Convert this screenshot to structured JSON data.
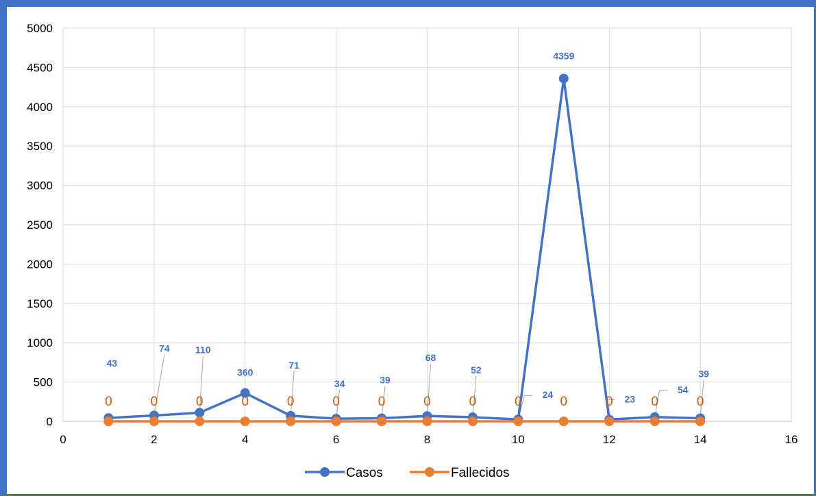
{
  "chart_data": {
    "type": "scatter",
    "title": "",
    "xlabel": "",
    "ylabel": "",
    "xlim": [
      0,
      16
    ],
    "ylim": [
      0,
      5000
    ],
    "x_ticks": [
      0,
      2,
      4,
      6,
      8,
      10,
      12,
      14,
      16
    ],
    "y_ticks": [
      0,
      500,
      1000,
      1500,
      2000,
      2500,
      3000,
      3500,
      4000,
      4500,
      5000
    ],
    "grid": true,
    "legend_position": "bottom",
    "x": [
      1,
      2,
      3,
      4,
      5,
      6,
      7,
      8,
      9,
      10,
      11,
      12,
      13,
      14
    ],
    "series": [
      {
        "name": "Casos",
        "color": "#4472C4",
        "values": [
          43,
          74,
          110,
          360,
          71,
          34,
          39,
          68,
          52,
          24,
          4359,
          23,
          54,
          39
        ],
        "labels": [
          "43",
          "74",
          "110",
          "360",
          "71",
          "34",
          "39",
          "68",
          "52",
          "24",
          "4359",
          "23",
          "54",
          "39"
        ]
      },
      {
        "name": "Fallecidos",
        "color": "#ED7D31",
        "label_color": "#C55A11",
        "values": [
          0,
          0,
          0,
          0,
          0,
          0,
          0,
          0,
          0,
          0,
          0,
          0,
          0,
          0
        ],
        "labels": [
          "0",
          "0",
          "0",
          "0",
          "0",
          "0",
          "0",
          "0",
          "0",
          "0",
          "0",
          "0",
          "0",
          "0"
        ]
      }
    ]
  },
  "frame": {
    "border_color": "#4472C4",
    "bottom_border_color": "#548235"
  },
  "gridline_color": "#D9D9D9"
}
